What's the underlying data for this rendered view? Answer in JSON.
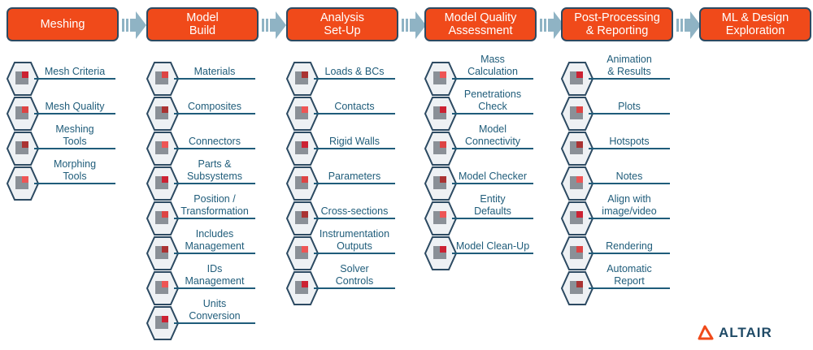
{
  "colors": {
    "header": "#f04a1a",
    "header_border": "#2c4a62",
    "text": "#1f5c7a",
    "arrow": "#8fb3c4"
  },
  "columns": [
    {
      "title": "Meshing",
      "items": [
        "Mesh Criteria",
        "Mesh Quality",
        "Meshing\nTools",
        "Morphing\nTools"
      ]
    },
    {
      "title": "Model\nBuild",
      "items": [
        "Materials",
        "Composites",
        "Connectors",
        "Parts &\nSubsystems",
        "Position /\nTransformation",
        "Includes\nManagement",
        "IDs\nManagement",
        "Units\nConversion"
      ]
    },
    {
      "title": "Analysis\nSet-Up",
      "items": [
        "Loads & BCs",
        "Contacts",
        "Rigid Walls",
        "Parameters",
        "Cross-sections",
        "Instrumentation\nOutputs",
        "Solver\nControls"
      ]
    },
    {
      "title": "Model Quality\nAssessment",
      "items": [
        "Mass\nCalculation",
        "Penetrations\nCheck",
        "Model\nConnectivity",
        "Model Checker",
        "Entity\nDefaults",
        "Model Clean-Up"
      ]
    },
    {
      "title": "Post-Processing\n& Reporting",
      "items": [
        "Animation\n& Results",
        "Plots",
        "Hotspots",
        "Notes",
        "Align with\nimage/video",
        "Rendering",
        "Automatic\nReport"
      ]
    },
    {
      "title": "ML & Design\nExploration",
      "items": []
    }
  ],
  "logo": {
    "text": "ALTAIR"
  }
}
